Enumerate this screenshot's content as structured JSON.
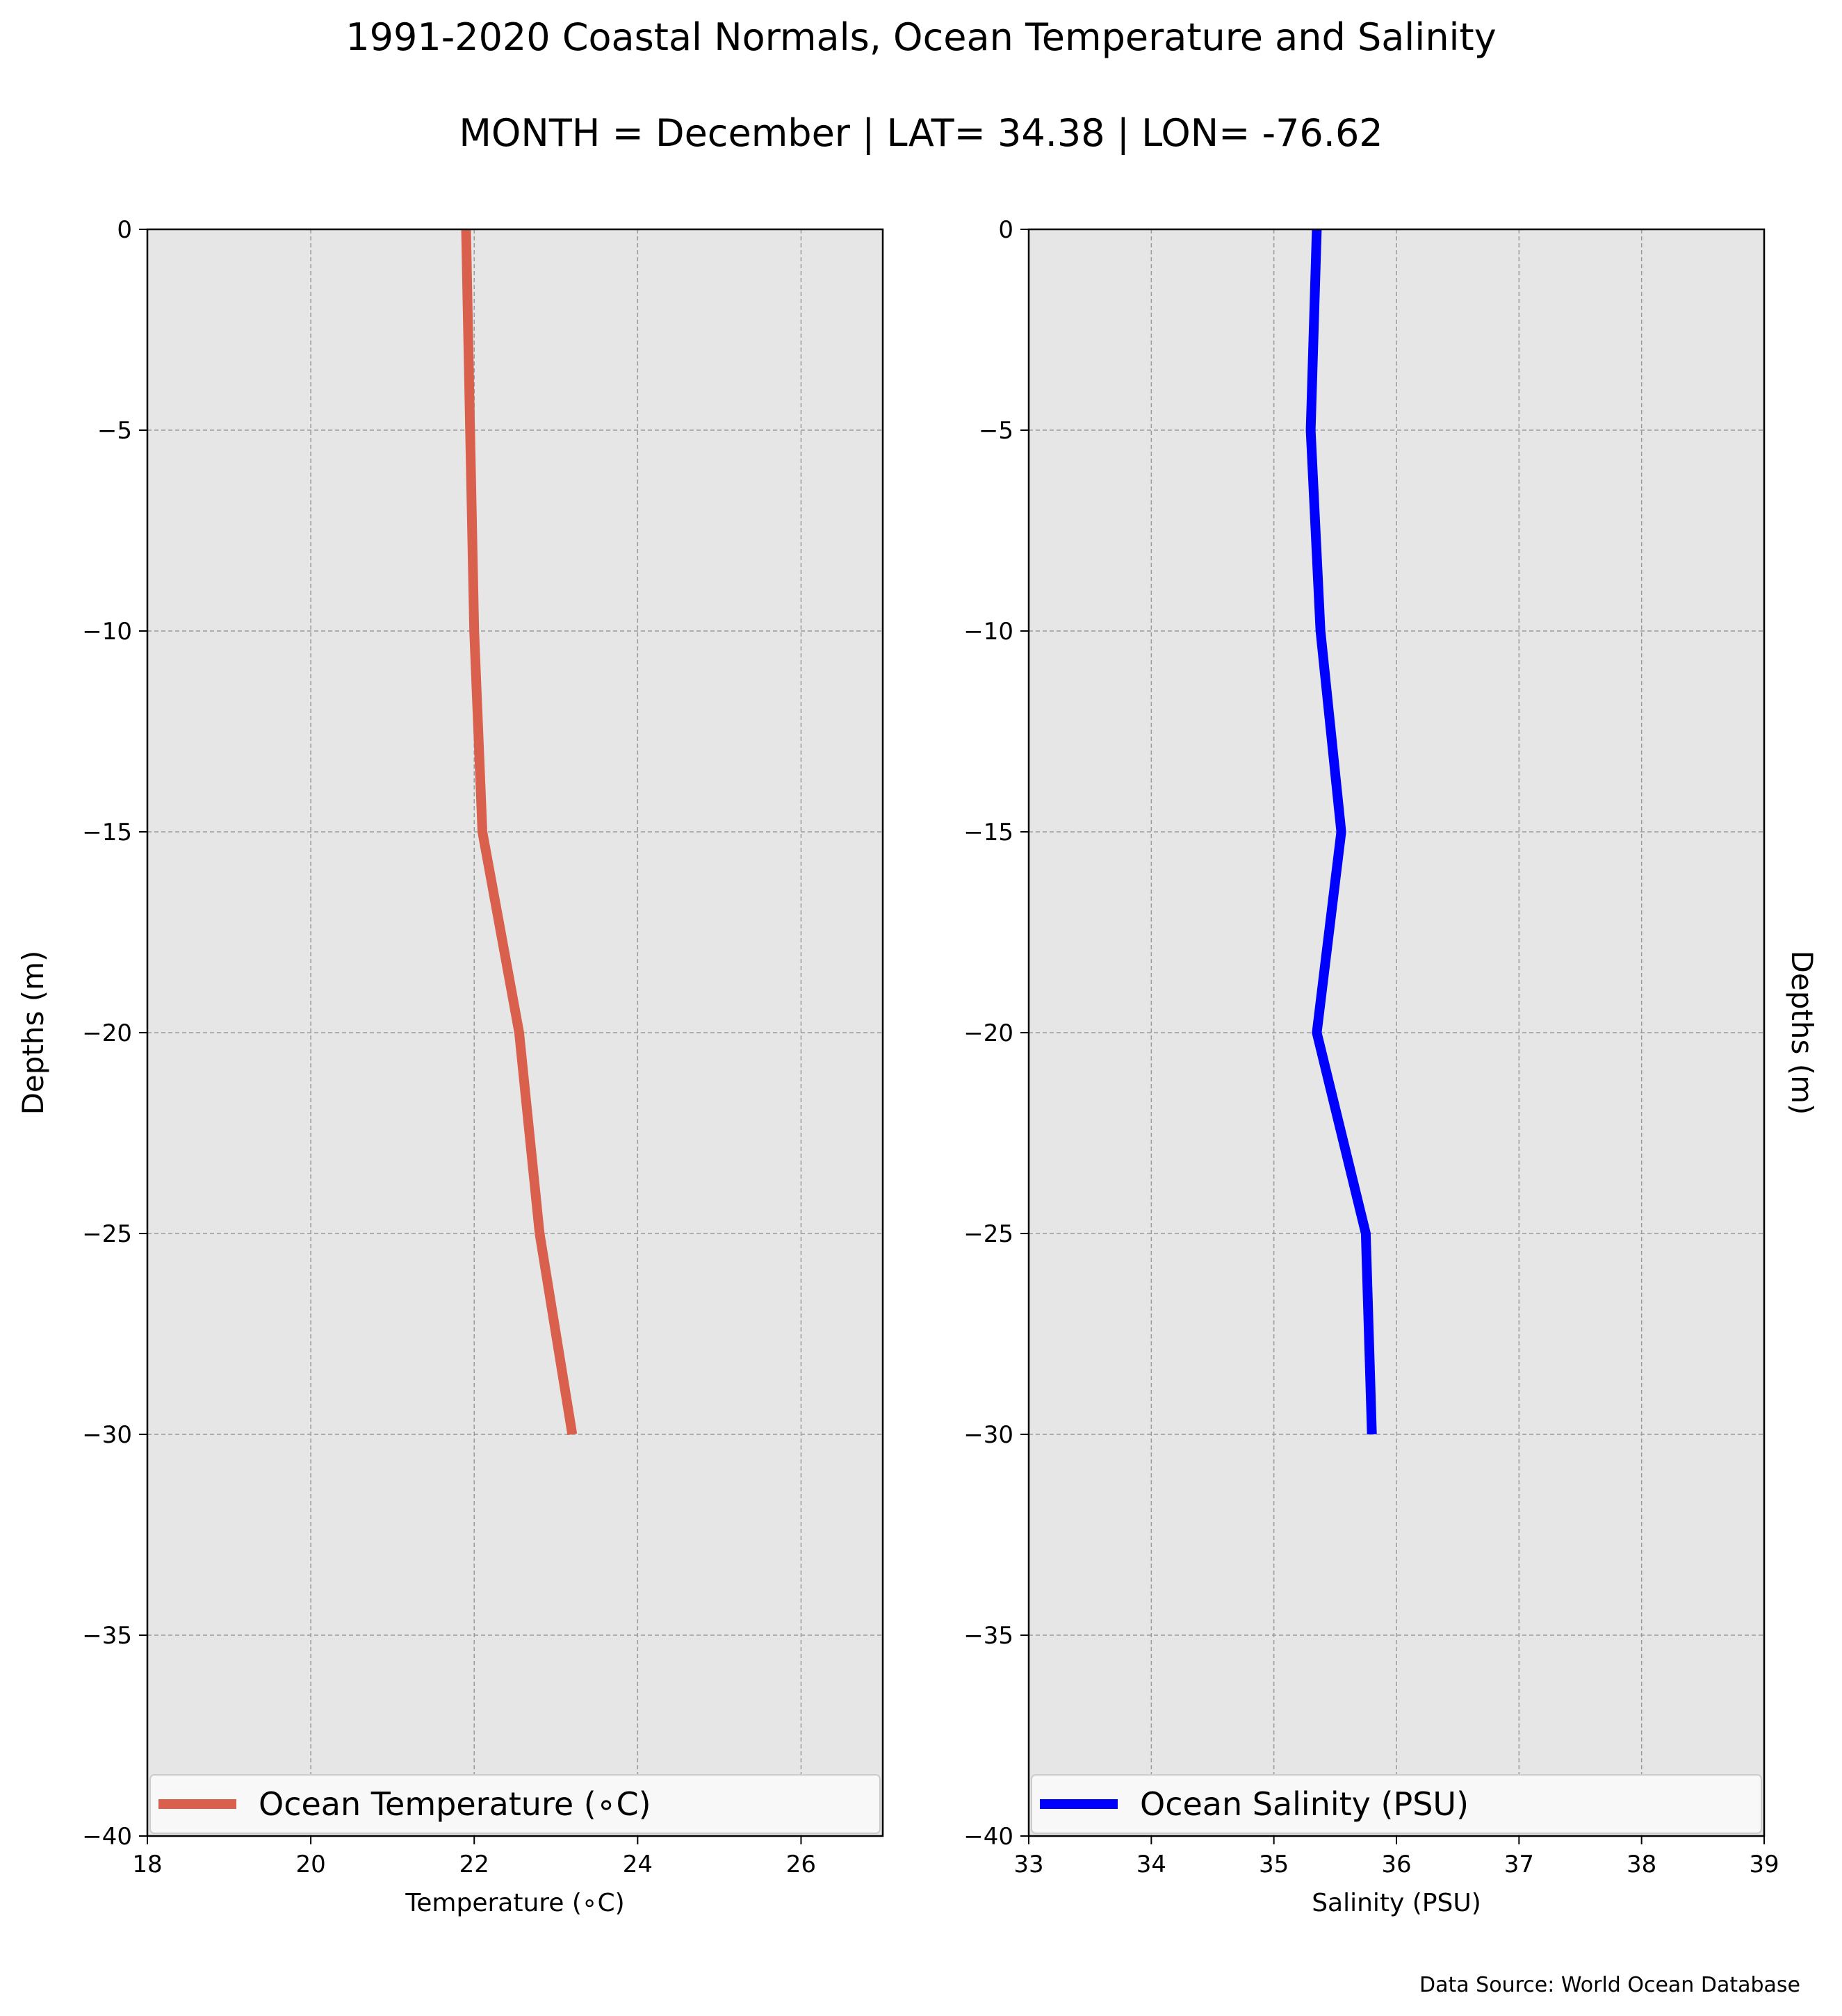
{
  "chart_data": {
    "title": "1991-2020 Coastal Normals, Ocean Temperature and Salinity",
    "subtitle": "MONTH = December | LAT= 34.38 | LON= -76.62",
    "source_note": "Data Source: World Ocean Database",
    "colors": {
      "background": "#e6e6e6",
      "grid": "#9a9a9a",
      "temperature": "#d9604c",
      "salinity": "#0000ff"
    },
    "panels": [
      {
        "type": "line",
        "xlabel": "Temperature (∘C)",
        "ylabel": "Depths (m)",
        "ylabel_side": "left",
        "xlim": [
          18,
          27
        ],
        "ylim": [
          -40,
          0
        ],
        "xticks": [
          18,
          20,
          22,
          24,
          26
        ],
        "yticks": [
          0,
          -5,
          -10,
          -15,
          -20,
          -25,
          -30,
          -35,
          -40
        ],
        "grid": true,
        "legend_placement": "lower center",
        "series": [
          {
            "name": "Ocean Temperature (∘C)",
            "color": "#d9604c",
            "x": [
              21.9,
              21.95,
              22.0,
              22.1,
              22.55,
              22.8,
              23.2
            ],
            "y": [
              0,
              -5,
              -10,
              -15,
              -20,
              -25,
              -30
            ]
          }
        ]
      },
      {
        "type": "line",
        "xlabel": "Salinity (PSU)",
        "ylabel": "Depths (m)",
        "ylabel_side": "right",
        "xlim": [
          33,
          39
        ],
        "ylim": [
          -40,
          0
        ],
        "xticks": [
          33,
          34,
          35,
          36,
          37,
          38,
          39
        ],
        "yticks": [
          0,
          -5,
          -10,
          -15,
          -20,
          -25,
          -30,
          -35,
          -40
        ],
        "grid": true,
        "legend_placement": "lower center",
        "series": [
          {
            "name": "Ocean Salinity (PSU)",
            "color": "#0000ff",
            "x": [
              35.35,
              35.3,
              35.38,
              35.55,
              35.35,
              35.75,
              35.8
            ],
            "y": [
              0,
              -5,
              -10,
              -15,
              -20,
              -25,
              -30
            ]
          }
        ]
      }
    ]
  }
}
